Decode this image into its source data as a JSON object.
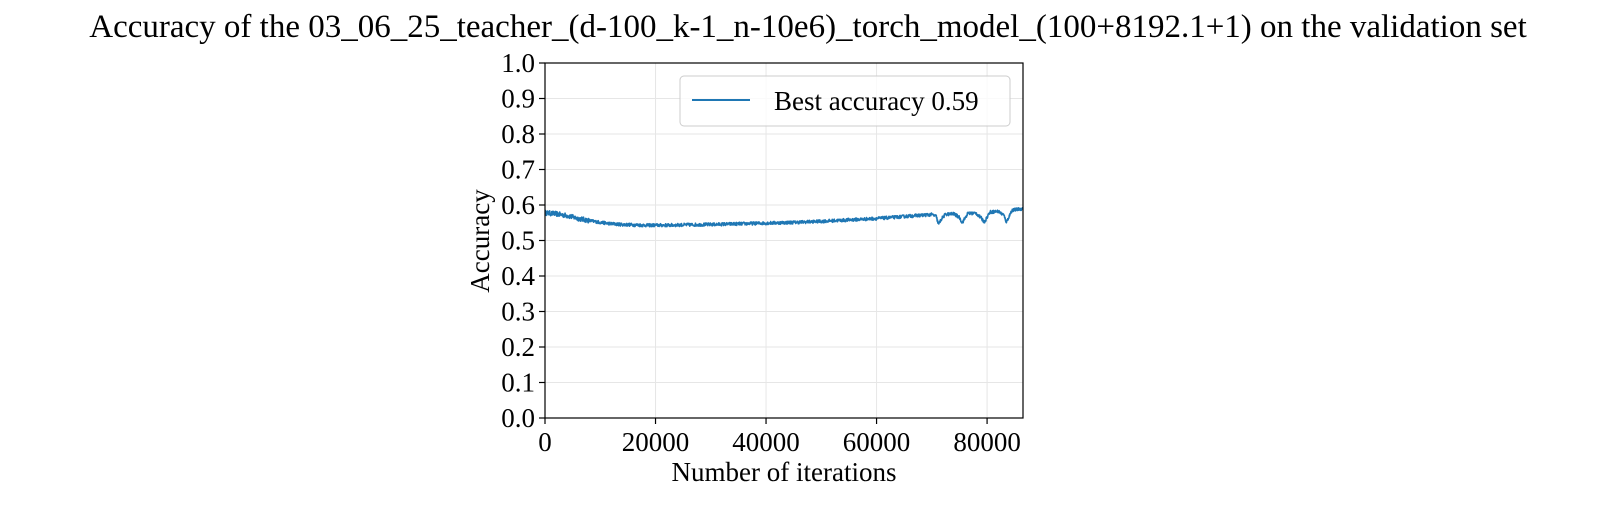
{
  "chart_data": {
    "type": "line",
    "title": "Accuracy of the 03_06_25_teacher_(d-100_k-1_n-10e6)_torch_model_(100+8192.1+1) on the validation set",
    "xlabel": "Number of iterations",
    "ylabel": "Accuracy",
    "xlim": [
      0,
      86500
    ],
    "ylim": [
      0.0,
      1.0
    ],
    "xticks": [
      0,
      20000,
      40000,
      60000,
      80000
    ],
    "xtick_labels": [
      "0",
      "20000",
      "40000",
      "60000",
      "80000"
    ],
    "yticks": [
      0.0,
      0.1,
      0.2,
      0.3,
      0.4,
      0.5,
      0.6,
      0.7,
      0.8,
      0.9,
      1.0
    ],
    "ytick_labels": [
      "0.0",
      "0.1",
      "0.2",
      "0.3",
      "0.4",
      "0.5",
      "0.6",
      "0.7",
      "0.8",
      "0.9",
      "1.0"
    ],
    "grid": true,
    "legend_position": "upper-right",
    "colors": {
      "series": "#1f77b4",
      "grid": "#e6e6e6",
      "axes": "#000000",
      "legend_border": "#cccccc"
    },
    "series": [
      {
        "name": "Best accuracy 0.59",
        "x": [
          0,
          2000,
          4000,
          6000,
          8000,
          10000,
          12000,
          14000,
          16000,
          18000,
          20000,
          22000,
          25000,
          30000,
          35000,
          40000,
          45000,
          50000,
          55000,
          60000,
          63000,
          66000,
          68000,
          70000,
          70800,
          71200,
          71800,
          72500,
          74000,
          75000,
          75500,
          76500,
          78000,
          79000,
          79500,
          80500,
          82000,
          83000,
          83500,
          84500,
          86000,
          86500
        ],
        "y": [
          0.578,
          0.575,
          0.57,
          0.562,
          0.556,
          0.551,
          0.547,
          0.545,
          0.544,
          0.543,
          0.543,
          0.543,
          0.544,
          0.545,
          0.547,
          0.549,
          0.551,
          0.554,
          0.558,
          0.562,
          0.565,
          0.569,
          0.571,
          0.573,
          0.568,
          0.545,
          0.562,
          0.574,
          0.575,
          0.565,
          0.55,
          0.576,
          0.577,
          0.562,
          0.552,
          0.58,
          0.582,
          0.572,
          0.552,
          0.585,
          0.589,
          0.59
        ]
      }
    ]
  }
}
